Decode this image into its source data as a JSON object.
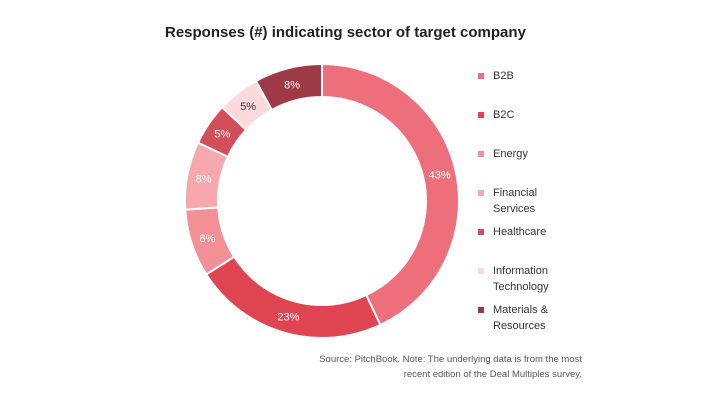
{
  "chart_data": {
    "type": "pie",
    "title": "Responses (#) indicating sector of target company",
    "donut": true,
    "legend_position": "right",
    "categories": [
      "B2B",
      "B2C",
      "Energy",
      "Financial Services",
      "Healthcare",
      "Information Technology",
      "Materials & Resources"
    ],
    "legend_labels": [
      "B2B",
      "B2C",
      "Energy",
      "Financial\nServices",
      "Healthcare",
      "Information\nTechnology",
      "Materials &\nResources"
    ],
    "values": [
      43,
      23,
      8,
      8,
      5,
      5,
      8
    ],
    "value_labels": [
      "43%",
      "23%",
      "8%",
      "8%",
      "5%",
      "5%",
      "8%"
    ],
    "colors": [
      "#ED6F7B",
      "#DF4551",
      "#F28F97",
      "#F6A8AD",
      "#D24E5B",
      "#FBD9DC",
      "#9E3A45"
    ]
  },
  "source_note": [
    "Source: PitchBook. Note: The underlying data is from the most",
    "recent edition of the Deal Multiples survey."
  ]
}
